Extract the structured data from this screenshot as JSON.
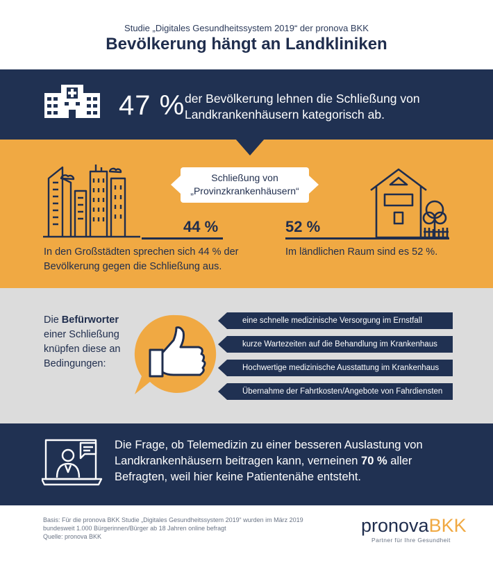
{
  "header": {
    "study": "Studie „Digitales Gesundheitssystem 2019“ der pronova BKK",
    "title": "Bevölkerung hängt an Landkliniken"
  },
  "top_stat": {
    "percent": "47 %",
    "text": "der Bevölkerung lehnen die Schließung von Landkrankenhäusern kategorisch ab.",
    "icon": "hospital-icon"
  },
  "comparison": {
    "pill_line1": "Schließung von",
    "pill_line2": "„Provinzkrankenhäusern“",
    "city": {
      "percent": "44 %",
      "text": "In den Großstädten sprechen sich 44 % der Bevölkerung gegen die Schließung aus.",
      "icon": "city-skyline-icon",
      "value": 44
    },
    "rural": {
      "percent": "52 %",
      "text": "Im ländlichen Raum sind es 52 %.",
      "icon": "country-house-icon",
      "value": 52
    }
  },
  "conditions": {
    "intro_pre": "Die ",
    "intro_bold": "Befürworter",
    "intro_post": " einer Schließung knüpfen diese an Bedingungen:",
    "icon": "thumbs-up-icon",
    "items": [
      "eine schnelle medizinische Versorgung im Ernstfall",
      "kurze Wartezeiten auf die Behandlung im Krankenhaus",
      "Hochwertige medizinische Ausstattung im Krankenhaus",
      "Übernahme der Fahrtkosten/Angebote von Fahrdiensten"
    ]
  },
  "telemedicine": {
    "text_pre": "Die Frage, ob Telemedizin zu einer besseren Auslastung von Landkrankenhäusern beitragen kann, verneinen ",
    "text_bold": "70 %",
    "text_post": " aller Befragten, weil hier keine Patientenähe entsteht.",
    "icon": "telemedicine-laptop-icon"
  },
  "footer": {
    "basis": "Basis: Für die pronova BKK Studie „Digitales Gesundheitssystem 2019“ wurden im März 2019",
    "basis2": "bundesweit 1.000 Bürgerinnen/Bürger ab 18 Jahren online befragt",
    "source": "Quelle: pronova BKK",
    "logo_part1": "pronova",
    "logo_part2": "BKK",
    "tagline": "Partner für Ihre Gesundheit"
  },
  "colors": {
    "navy": "#203152",
    "orange": "#f0a943",
    "grey": "#dcdcdc"
  }
}
